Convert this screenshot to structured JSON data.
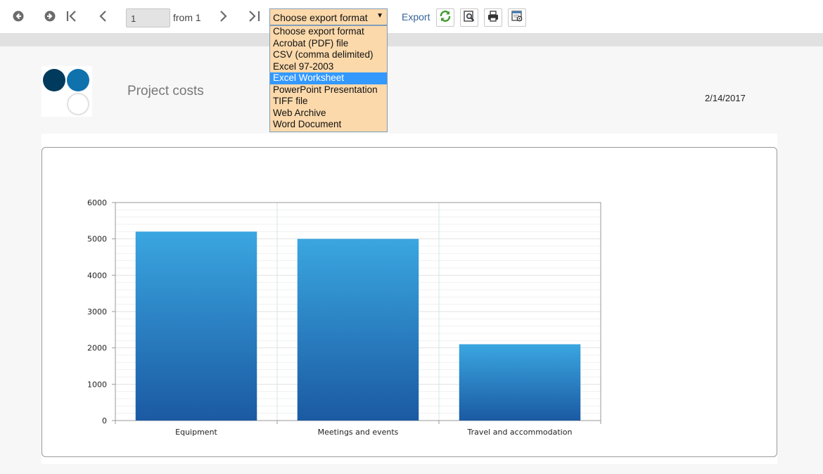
{
  "toolbar": {
    "buttons": [
      "back-icon",
      "forward-icon",
      "first-page-icon",
      "previous-page-icon",
      "next-page-icon",
      "last-page-icon"
    ],
    "page_number": "1",
    "from_label": "from 1",
    "export_format": {
      "selected": "Choose export format",
      "options": [
        "Choose export format",
        "Acrobat (PDF) file",
        "CSV (comma delimited)",
        "Excel 97-2003",
        "Excel Worksheet",
        "PowerPoint Presentation",
        "TIFF file",
        "Web Archive",
        "Word Document"
      ],
      "highlighted": "Excel Worksheet"
    },
    "export_label": "Export",
    "tool_icons": [
      "refresh-icon",
      "print-preview-icon",
      "print-icon",
      "email-icon"
    ]
  },
  "report": {
    "title": "Project costs",
    "date": "2/14/2017"
  },
  "colors": {
    "dropdown_bg": "#fcd9ab",
    "highlight": "#3399ff",
    "bar_top": "#3aa6e0",
    "bar_bottom": "#1b5aa3",
    "logo_dark": "#003a5c",
    "logo_mid": "#0f72ad"
  },
  "chart_data": {
    "type": "bar",
    "categories": [
      "Equipment",
      "Meetings and events",
      "Travel and accommodation"
    ],
    "values": [
      5200,
      5000,
      2100
    ],
    "title": "",
    "xlabel": "",
    "ylabel": "",
    "ylim": [
      0,
      6000
    ],
    "yticks": [
      0,
      1000,
      2000,
      3000,
      4000,
      5000,
      6000
    ],
    "grid": true,
    "legend": "none"
  }
}
